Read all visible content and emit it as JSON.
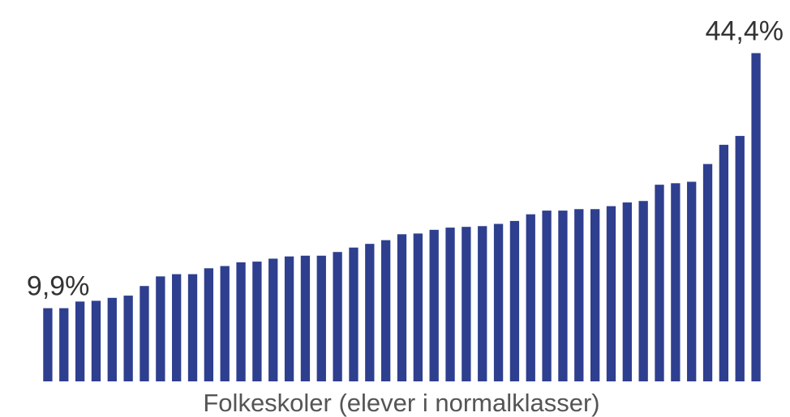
{
  "chart_data": {
    "type": "bar",
    "xlabel": "Folkeskoler (elever i normalklasser)",
    "ylabel": "",
    "ylim": [
      0,
      46
    ],
    "grid": false,
    "legend": "none",
    "bar_color": "#2e3f8f",
    "values": [
      9.9,
      9.9,
      10.8,
      10.9,
      11.3,
      11.6,
      12.9,
      14.2,
      14.5,
      14.5,
      15.3,
      15.6,
      16.1,
      16.2,
      16.6,
      16.9,
      17.0,
      17.0,
      17.5,
      18.1,
      18.6,
      19.1,
      19.9,
      20.0,
      20.5,
      20.8,
      20.9,
      21.0,
      21.3,
      21.7,
      22.6,
      23.1,
      23.1,
      23.3,
      23.3,
      23.7,
      24.2,
      24.4,
      26.6,
      26.8,
      27.0,
      29.4,
      32.0,
      33.2,
      44.4
    ],
    "annotations": [
      {
        "index": 0,
        "text": "9,9%"
      },
      {
        "index": 44,
        "text": "44,4%"
      }
    ]
  }
}
